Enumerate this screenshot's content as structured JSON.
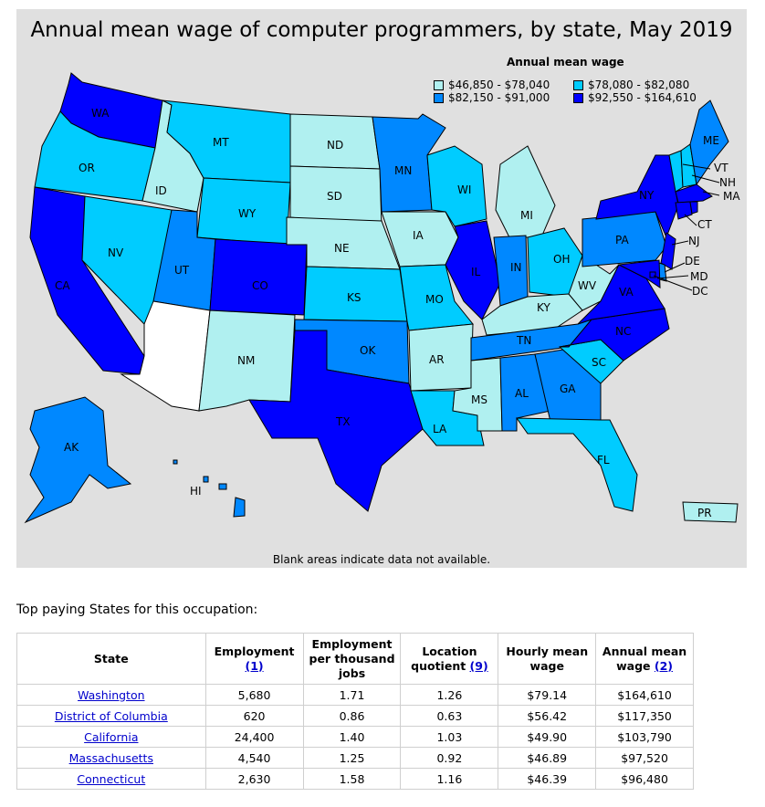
{
  "map": {
    "title": "Annual mean wage of computer programmers, by state, May 2019",
    "legend_title": "Annual mean wage",
    "footnote": "Blank areas indicate data not available.",
    "legend": [
      {
        "label": "$46,850 - $78,040",
        "color": "#b0f0f0"
      },
      {
        "label": "$78,080 - $82,080",
        "color": "#00ccff"
      },
      {
        "label": "$82,150 - $91,000",
        "color": "#0088ff"
      },
      {
        "label": "$92,550 - $164,610",
        "color": "#0000ff"
      }
    ],
    "no_data_color": "#ffffff",
    "state_labels": {
      "WA": "WA",
      "OR": "OR",
      "CA": "CA",
      "ID": "ID",
      "NV": "NV",
      "MT": "MT",
      "WY": "WY",
      "UT": "UT",
      "CO": "CO",
      "ND": "ND",
      "SD": "SD",
      "NE": "NE",
      "KS": "KS",
      "OK": "OK",
      "TX": "TX",
      "NM": "NM",
      "MN": "MN",
      "IA": "IA",
      "MO": "MO",
      "AR": "AR",
      "LA": "LA",
      "WI": "WI",
      "IL": "IL",
      "MI": "MI",
      "IN": "IN",
      "OH": "OH",
      "KY": "KY",
      "TN": "TN",
      "MS": "MS",
      "AL": "AL",
      "GA": "GA",
      "FL": "FL",
      "SC": "SC",
      "NC": "NC",
      "VA": "VA",
      "WV": "WV",
      "PA": "PA",
      "NY": "NY",
      "ME": "ME",
      "VT": "VT",
      "NH": "NH",
      "MA": "MA",
      "CT": "CT",
      "NJ": "NJ",
      "DE": "DE",
      "MD": "MD",
      "DC": "DC",
      "AK": "AK",
      "HI": "HI",
      "PR": "PR"
    }
  },
  "table": {
    "caption": "Top paying States for this occupation:",
    "headers": {
      "state": "State",
      "employment": "Employment",
      "employment_note": "(1)",
      "per_thousand": "Employment per thousand jobs",
      "location_quotient": "Location quotient",
      "lq_note": "(9)",
      "hourly": "Hourly mean wage",
      "annual": "Annual mean wage",
      "annual_note": "(2)"
    },
    "rows": [
      {
        "state": "Washington",
        "employment": "5,680",
        "per_thousand": "1.71",
        "lq": "1.26",
        "hourly": "$79.14",
        "annual": "$164,610"
      },
      {
        "state": "District of Columbia",
        "employment": "620",
        "per_thousand": "0.86",
        "lq": "0.63",
        "hourly": "$56.42",
        "annual": "$117,350"
      },
      {
        "state": "California",
        "employment": "24,400",
        "per_thousand": "1.40",
        "lq": "1.03",
        "hourly": "$49.90",
        "annual": "$103,790"
      },
      {
        "state": "Massachusetts",
        "employment": "4,540",
        "per_thousand": "1.25",
        "lq": "0.92",
        "hourly": "$46.89",
        "annual": "$97,520"
      },
      {
        "state": "Connecticut",
        "employment": "2,630",
        "per_thousand": "1.58",
        "lq": "1.16",
        "hourly": "$46.39",
        "annual": "$96,480"
      }
    ]
  }
}
